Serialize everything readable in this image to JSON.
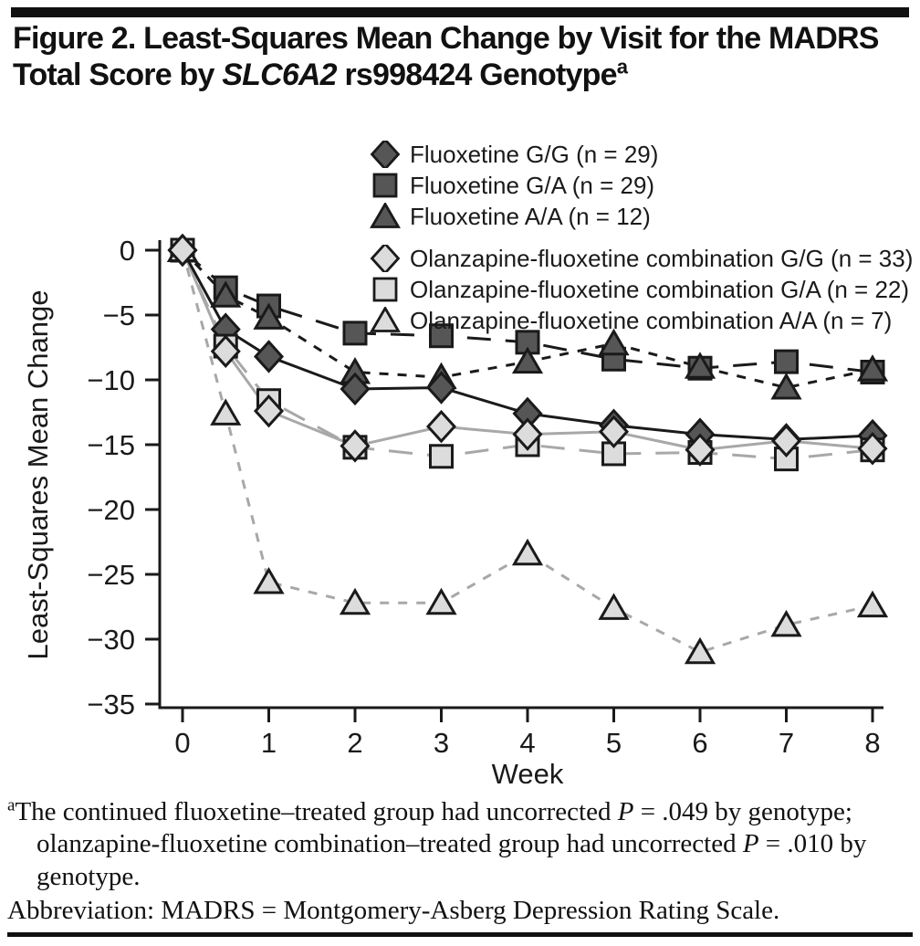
{
  "title": {
    "line1": "Figure 2. Least-Squares Mean Change by Visit for the MADRS",
    "line2a": "Total Score by ",
    "gene": "SLC6A2",
    "line2b": " rs998424 Genotype",
    "superscript": "a"
  },
  "colors": {
    "black_line": "#1a1a1a",
    "gray_line": "#a8a8a8",
    "dark_marker_fill": "#565656",
    "light_marker_fill": "#dcdcdc",
    "rule": "#111111"
  },
  "chart_data": {
    "type": "line",
    "x": [
      0,
      0.5,
      1,
      2,
      3,
      4,
      5,
      6,
      7,
      8
    ],
    "xticks": [
      0,
      1,
      2,
      3,
      4,
      5,
      6,
      7,
      8
    ],
    "xtick_labels": [
      "0",
      "1",
      "2",
      "3",
      "4",
      "5",
      "6",
      "7",
      "8"
    ],
    "yticks": [
      0,
      -5,
      -10,
      -15,
      -20,
      -25,
      -30,
      -35
    ],
    "ytick_labels": [
      "0",
      "−5",
      "−10",
      "−15",
      "−20",
      "−25",
      "−30",
      "−35"
    ],
    "ylim": [
      -35,
      0
    ],
    "xlabel": "Week",
    "ylabel": "Least-Squares Mean Change",
    "grid": false,
    "legend_position": "top-center",
    "series": [
      {
        "label": "Fluoxetine G/G (n = 29)",
        "marker": "diamond",
        "fill": "#565656",
        "line_color": "#1a1a1a",
        "dash": "solid",
        "values": [
          0,
          -6.1,
          -8.2,
          -10.7,
          -10.6,
          -12.6,
          -13.5,
          -14.2,
          -14.6,
          -14.3
        ]
      },
      {
        "label": "Fluoxetine G/A (n = 29)",
        "marker": "square",
        "fill": "#565656",
        "line_color": "#1a1a1a",
        "dash": "long",
        "values": [
          0,
          -2.9,
          -4.3,
          -6.4,
          -6.6,
          -7.1,
          -8.4,
          -9.1,
          -8.6,
          -9.4
        ]
      },
      {
        "label": "Fluoxetine A/A (n = 12)",
        "marker": "triangle",
        "fill": "#565656",
        "line_color": "#1a1a1a",
        "dash": "short",
        "values": [
          0,
          -3.5,
          -5.2,
          -9.4,
          -9.8,
          -8.6,
          -7.2,
          -9.0,
          -10.6,
          -9.2
        ]
      },
      {
        "label": "Olanzapine-fluoxetine combination G/G (n = 33)",
        "marker": "diamond",
        "fill": "#dcdcdc",
        "line_color": "#a8a8a8",
        "dash": "solid",
        "values": [
          0,
          -7.8,
          -12.4,
          -15.1,
          -13.6,
          -14.2,
          -14.0,
          -15.4,
          -14.7,
          -15.3
        ]
      },
      {
        "label": "Olanzapine-fluoxetine combination G/A (n = 22)",
        "marker": "square",
        "fill": "#dcdcdc",
        "line_color": "#a8a8a8",
        "dash": "long",
        "values": [
          0,
          -7.4,
          -11.6,
          -15.2,
          -15.9,
          -15.0,
          -15.7,
          -15.6,
          -16.1,
          -15.4
        ]
      },
      {
        "label": "Olanzapine-fluoxetine combination A/A (n = 7)",
        "marker": "triangle",
        "fill": "#dcdcdc",
        "line_color": "#a8a8a8",
        "dash": "short",
        "values": [
          0,
          -12.6,
          -25.6,
          -27.2,
          -27.2,
          -23.4,
          -27.6,
          -31.0,
          -28.9,
          -27.4
        ]
      }
    ]
  },
  "footnote": {
    "marker": "a",
    "t1": "The continued fluoxetine–treated group had uncorrected ",
    "p1": "P",
    "t2": " = .049 by genotype; olanzapine-fluoxetine combination–treated group had uncorrected ",
    "p2": "P",
    "t3": " = .010 by genotype.",
    "abbreviation": "Abbreviation: MADRS = Montgomery-Asberg Depression Rating Scale."
  }
}
